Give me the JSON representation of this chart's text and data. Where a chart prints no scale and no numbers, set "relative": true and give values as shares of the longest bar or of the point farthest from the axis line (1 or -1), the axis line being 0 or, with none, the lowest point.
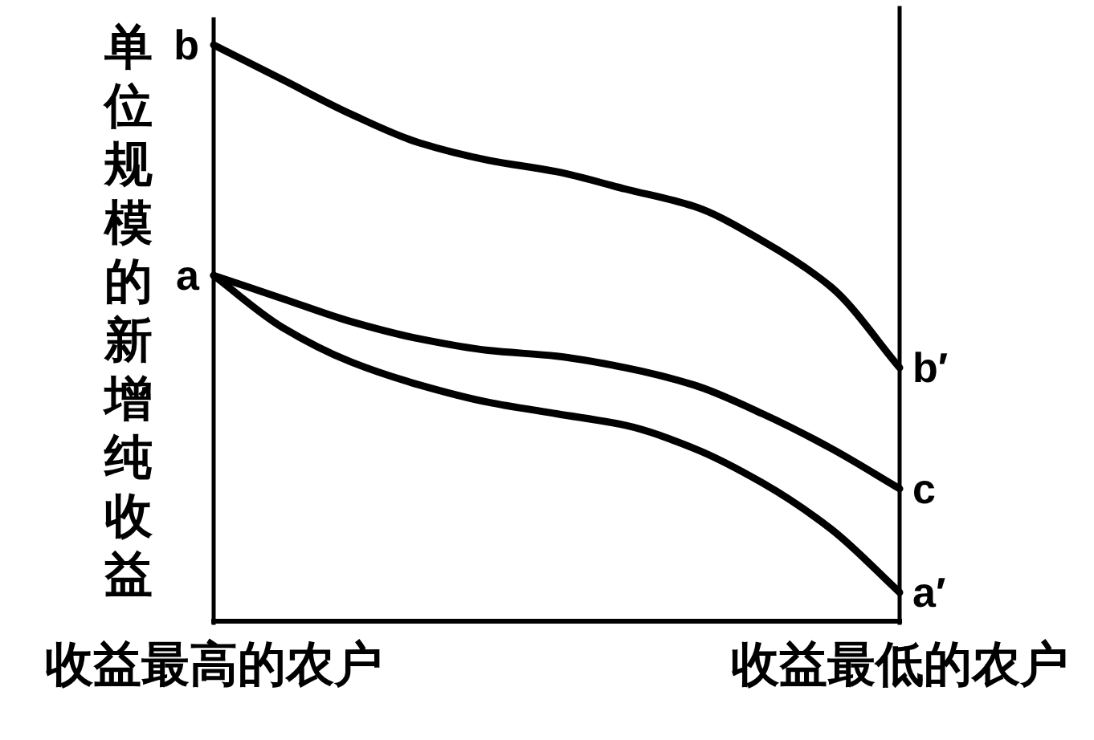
{
  "chart_data": {
    "type": "line",
    "relative": true,
    "ylabel": "单位规模的新增纯收益",
    "categories": [
      "收益最高的农户",
      null,
      null,
      null,
      null,
      null,
      null,
      null,
      null,
      null,
      "收益最低的农户"
    ],
    "series": [
      {
        "color": "#000000",
        "values": [
          1,
          0.94,
          0.88,
          0.83,
          0.8,
          0.78,
          0.75,
          0.72,
          0.66,
          0.58,
          0.44
        ]
      },
      {
        "color": "#000000",
        "values": [
          0.6,
          0.56,
          0.52,
          0.49,
          0.47,
          0.46,
          0.44,
          0.41,
          0.36,
          0.3,
          0.23
        ]
      },
      {
        "color": "#000000",
        "values": [
          0.6,
          0.51,
          0.45,
          0.41,
          0.38,
          0.36,
          0.34,
          0.3,
          0.24,
          0.16,
          0.05
        ]
      }
    ],
    "annotations": [
      {
        "text": "b",
        "x": "收益最高的农户",
        "y": 1
      },
      {
        "text": "a",
        "x": "收益最高的农户",
        "y": 0.6
      },
      {
        "text": "b′",
        "x": "收益最低的农户",
        "y": 0.44
      },
      {
        "text": "c",
        "x": "收益最低的农户",
        "y": 0.23
      },
      {
        "text": "a′",
        "x": "收益最低的农户",
        "y": 0.05
      }
    ]
  }
}
